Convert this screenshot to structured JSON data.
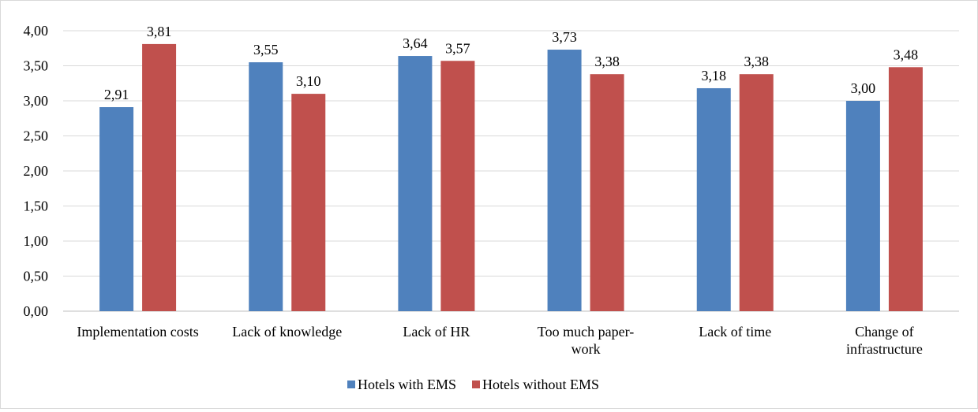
{
  "chart_data": {
    "type": "bar",
    "categories": [
      [
        "Implementation costs"
      ],
      [
        "Lack of knowledge"
      ],
      [
        "Lack of HR"
      ],
      [
        "Too much paper-",
        "work"
      ],
      [
        "Lack of time"
      ],
      [
        "Change of",
        "infrastructure"
      ]
    ],
    "series": [
      {
        "name": "Hotels with EMS",
        "color": "#4f81bd",
        "values": [
          2.91,
          3.55,
          3.64,
          3.73,
          3.18,
          3.0
        ],
        "labels": [
          "2,91",
          "3,55",
          "3,64",
          "3,73",
          "3,18",
          "3,00"
        ]
      },
      {
        "name": "Hotels without EMS",
        "color": "#c0504d",
        "values": [
          3.81,
          3.1,
          3.57,
          3.38,
          3.38,
          3.48
        ],
        "labels": [
          "3,81",
          "3,10",
          "3,57",
          "3,38",
          "3,38",
          "3,48"
        ]
      }
    ],
    "ylim": [
      0,
      4
    ],
    "yticks": [
      "0,00",
      "0,50",
      "1,00",
      "1,50",
      "2,00",
      "2,50",
      "3,00",
      "3,50",
      "4,00"
    ],
    "grid": true,
    "legend_position": "bottom",
    "title": "",
    "xlabel": "",
    "ylabel": ""
  }
}
